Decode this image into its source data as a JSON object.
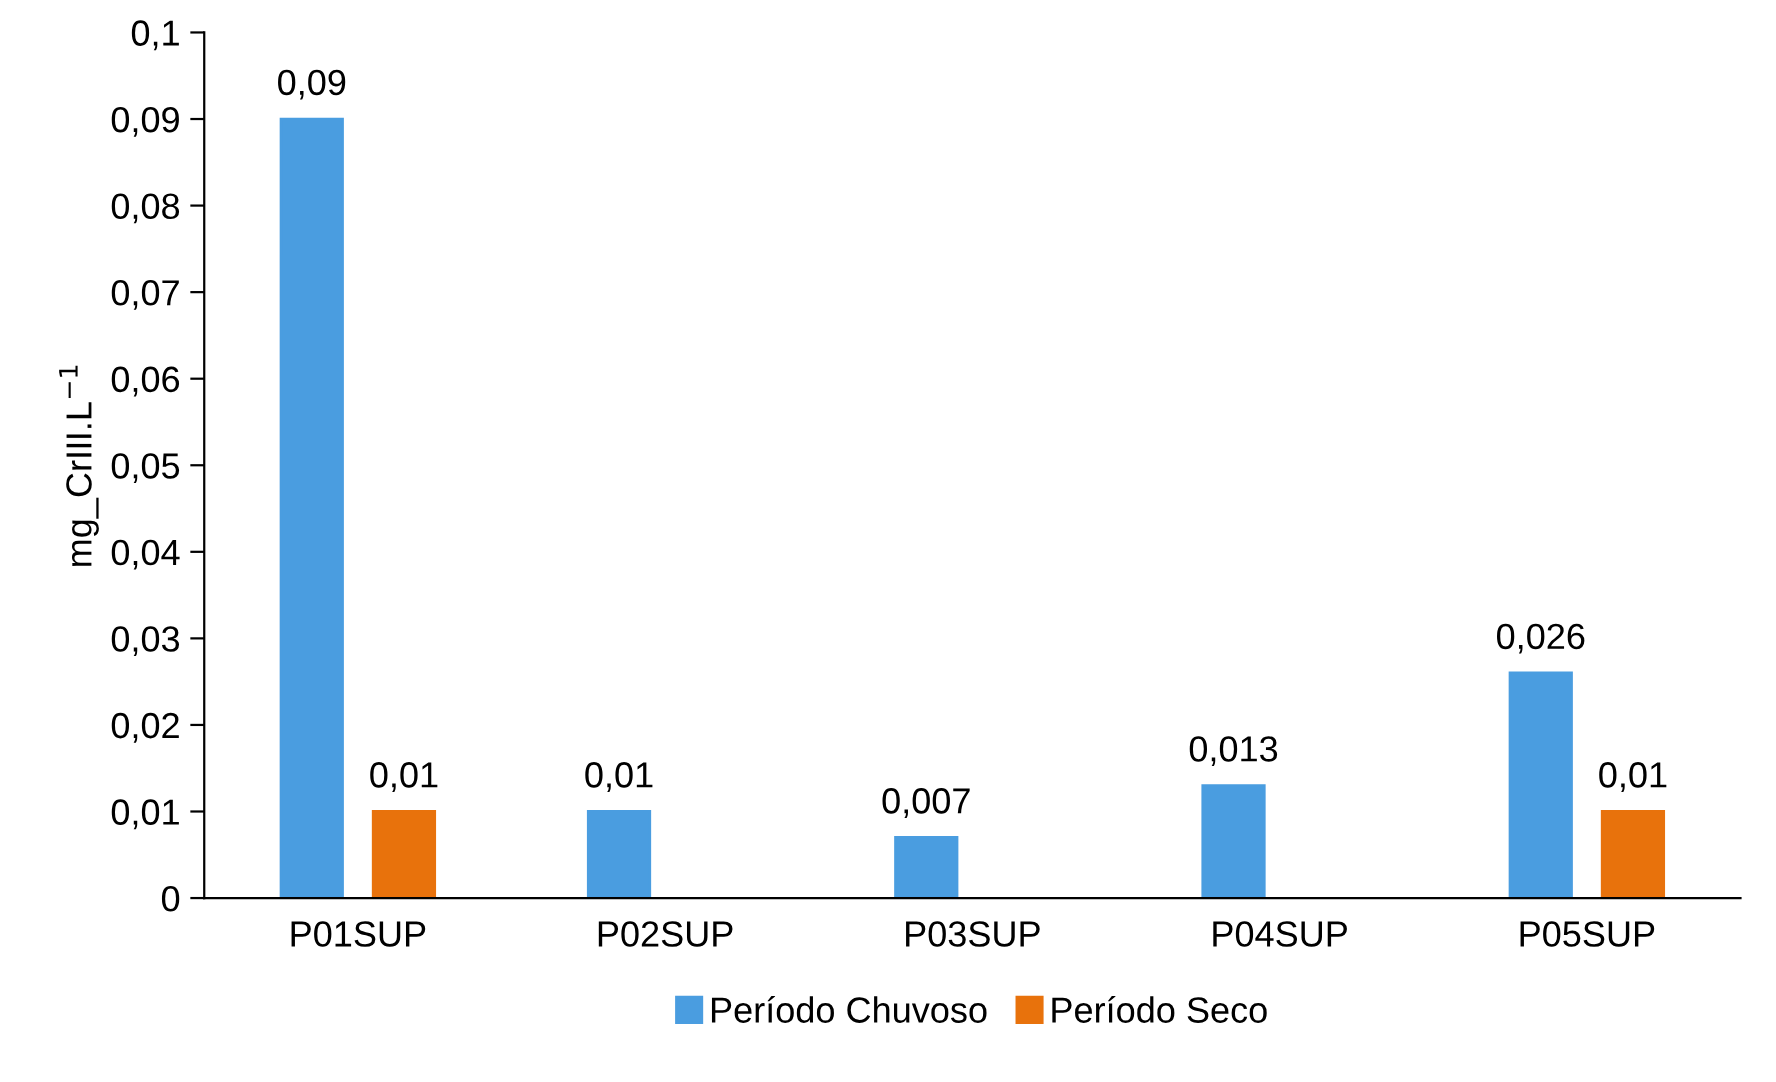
{
  "chart_data": {
    "type": "bar",
    "ylabel": "mg_CrIII.L$^{−1}$",
    "categories": [
      "P01SUP",
      "P02SUP",
      "P03SUP",
      "P04SUP",
      "P05SUP"
    ],
    "series": [
      {
        "name": "Período Chuvoso",
        "color": "#4a9de0",
        "values": [
          0.09,
          0.01,
          0.007,
          0.013,
          0.026
        ],
        "value_labels": [
          "0,09",
          "0,01",
          "0,007",
          "0,013",
          "0,026"
        ]
      },
      {
        "name": "Período Seco",
        "color": "#e8720c",
        "values": [
          0.01,
          null,
          null,
          null,
          0.01
        ],
        "value_labels": [
          "0,01",
          null,
          null,
          null,
          "0,01"
        ]
      }
    ],
    "ylim": [
      0,
      0.1
    ],
    "yticks": [
      0,
      {
        "value": 0.01,
        "label": "0,01"
      },
      {
        "value": 0.02,
        "label": "0,02"
      },
      {
        "value": 0.03,
        "label": "0,03"
      },
      {
        "value": 0.04,
        "label": "0,04"
      },
      {
        "value": 0.05,
        "label": "0,05"
      },
      {
        "value": 0.06,
        "label": "0,06"
      },
      {
        "value": 0.07,
        "label": "0,07"
      },
      {
        "value": 0.08,
        "label": "0,08"
      },
      {
        "value": 0.09,
        "label": "0,09"
      },
      {
        "value": 0.1,
        "label": "0,1"
      }
    ],
    "grid": false,
    "legend": "bottom"
  }
}
